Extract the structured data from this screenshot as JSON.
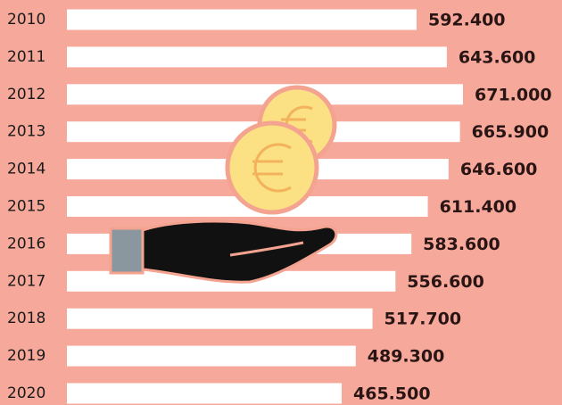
{
  "chart_data": {
    "type": "bar",
    "orientation": "horizontal",
    "categories": [
      "2010",
      "2011",
      "2012",
      "2013",
      "2014",
      "2015",
      "2016",
      "2017",
      "2018",
      "2019",
      "2020"
    ],
    "values": [
      592400,
      643600,
      671000,
      665900,
      646600,
      611400,
      583600,
      556600,
      517700,
      489300,
      465500
    ],
    "value_labels": [
      "592.400",
      "643.600",
      "671.000",
      "665.900",
      "646.600",
      "611.400",
      "583.600",
      "556.600",
      "517.700",
      "489.300",
      "465.500"
    ],
    "color": "#ffffff"
  }
}
